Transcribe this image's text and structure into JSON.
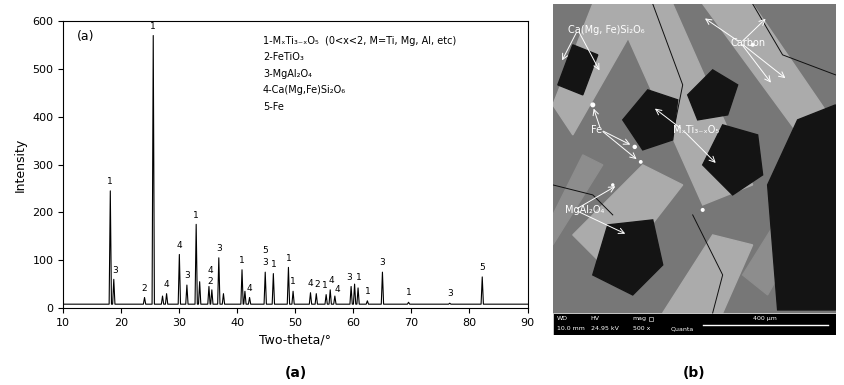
{
  "chart_data": {
    "type": "line",
    "panel_label": "(a)",
    "caption": "(a)",
    "xlabel": "Two-theta/°",
    "ylabel": "Intensity",
    "xlim": [
      10,
      90
    ],
    "xticks": [
      10,
      20,
      30,
      40,
      50,
      60,
      70,
      80,
      90
    ],
    "ylim": [
      0,
      600
    ],
    "yticks": [
      0,
      100,
      200,
      300,
      400,
      500,
      600
    ],
    "color": "#000000",
    "x": [
      10,
      17.9,
      18.1,
      18.3,
      18.5,
      18.7,
      18.9,
      23.8,
      24.0,
      24.2,
      25.3,
      25.5,
      25.7,
      26.9,
      27.1,
      27.3,
      27.6,
      27.8,
      28.0,
      29.8,
      30.0,
      30.2,
      31.1,
      31.3,
      31.5,
      32.7,
      32.9,
      33.1,
      33.3,
      33.5,
      33.7,
      34.9,
      35.1,
      35.3,
      35.4,
      35.6,
      35.8,
      36.6,
      36.8,
      37.0,
      37.4,
      37.6,
      37.8,
      40.6,
      40.8,
      41.0,
      41.1,
      41.3,
      41.5,
      41.9,
      42.1,
      42.3,
      44.6,
      44.8,
      45.0,
      46.0,
      46.2,
      46.4,
      48.6,
      48.8,
      49.0,
      49.4,
      49.6,
      49.8,
      52.4,
      52.6,
      52.8,
      53.4,
      53.6,
      53.8,
      55.1,
      55.3,
      55.5,
      55.8,
      56.0,
      56.2,
      56.6,
      56.8,
      57.0,
      59.4,
      59.6,
      59.8,
      60.0,
      60.2,
      60.4,
      60.6,
      60.8,
      61.0,
      62.2,
      62.4,
      62.6,
      64.8,
      65.0,
      65.2,
      69.3,
      69.5,
      69.7,
      76.4,
      76.6,
      76.8,
      82.0,
      82.2,
      82.4,
      90
    ],
    "values": [
      8,
      8,
      245,
      8,
      8,
      60,
      8,
      8,
      22,
      8,
      8,
      570,
      8,
      8,
      25,
      8,
      8,
      30,
      8,
      8,
      112,
      8,
      8,
      48,
      8,
      8,
      175,
      8,
      8,
      55,
      8,
      8,
      45,
      8,
      8,
      38,
      8,
      8,
      105,
      8,
      8,
      30,
      8,
      8,
      80,
      8,
      8,
      35,
      8,
      8,
      22,
      8,
      8,
      75,
      8,
      8,
      72,
      8,
      8,
      85,
      8,
      8,
      35,
      8,
      8,
      32,
      8,
      8,
      30,
      8,
      8,
      28,
      8,
      8,
      38,
      8,
      8,
      25,
      8,
      8,
      45,
      8,
      8,
      50,
      8,
      8,
      42,
      8,
      8,
      15,
      8,
      8,
      75,
      8,
      8,
      12,
      8,
      8,
      10,
      8,
      8,
      65,
      8,
      8
    ],
    "legend_text": [
      "1-MₓTi₃₋ₓO₅  (0<x<2, M=Ti, Mg, Al, etc)",
      "2-FeTiO₃",
      "3-MgAl₂O₄",
      "4-Ca(Mg,Fe)Si₂O₆",
      "5-Fe"
    ],
    "annotations": [
      {
        "x": 18.1,
        "y": 255,
        "text": "1"
      },
      {
        "x": 18.9,
        "y": 70,
        "text": "3"
      },
      {
        "x": 24.0,
        "y": 32,
        "text": "2"
      },
      {
        "x": 25.5,
        "y": 580,
        "text": "1"
      },
      {
        "x": 27.8,
        "y": 40,
        "text": "4"
      },
      {
        "x": 30.0,
        "y": 122,
        "text": "4"
      },
      {
        "x": 31.3,
        "y": 58,
        "text": "3"
      },
      {
        "x": 32.9,
        "y": 185,
        "text": "1"
      },
      {
        "x": 35.3,
        "y": 70,
        "text": "4"
      },
      {
        "x": 35.3,
        "y": 45,
        "text": "2"
      },
      {
        "x": 36.8,
        "y": 115,
        "text": "3"
      },
      {
        "x": 40.8,
        "y": 90,
        "text": "1"
      },
      {
        "x": 42.1,
        "y": 32,
        "text": "4"
      },
      {
        "x": 44.8,
        "y": 110,
        "text": "5"
      },
      {
        "x": 44.8,
        "y": 85,
        "text": "3"
      },
      {
        "x": 46.2,
        "y": 82,
        "text": "1"
      },
      {
        "x": 48.8,
        "y": 95,
        "text": "1"
      },
      {
        "x": 49.6,
        "y": 45,
        "text": "1"
      },
      {
        "x": 52.5,
        "y": 42,
        "text": "4"
      },
      {
        "x": 53.7,
        "y": 40,
        "text": "2"
      },
      {
        "x": 55.0,
        "y": 38,
        "text": "1"
      },
      {
        "x": 56.2,
        "y": 48,
        "text": "4"
      },
      {
        "x": 57.2,
        "y": 30,
        "text": "4"
      },
      {
        "x": 59.2,
        "y": 55,
        "text": "3"
      },
      {
        "x": 61.0,
        "y": 55,
        "text": "1"
      },
      {
        "x": 62.4,
        "y": 25,
        "text": "1"
      },
      {
        "x": 65.0,
        "y": 85,
        "text": "3"
      },
      {
        "x": 69.5,
        "y": 22,
        "text": "1"
      },
      {
        "x": 76.6,
        "y": 20,
        "text": "3"
      },
      {
        "x": 82.2,
        "y": 75,
        "text": "5"
      }
    ]
  },
  "micrograph": {
    "caption": "(b)",
    "labels": [
      "Ca(Mg, Fe)Si₂O₆",
      "Carbon",
      "Fe",
      "MₓTi₃₋ₓO₅",
      "MgAl₂O₄"
    ],
    "info_bar": [
      {
        "title": "WD",
        "value": "10.0 mm"
      },
      {
        "title": "HV",
        "value": "24.95 kV"
      },
      {
        "title": "mag",
        "value": "500 x"
      }
    ],
    "scale_bar": "400 μm",
    "instrument": "Quanta"
  }
}
